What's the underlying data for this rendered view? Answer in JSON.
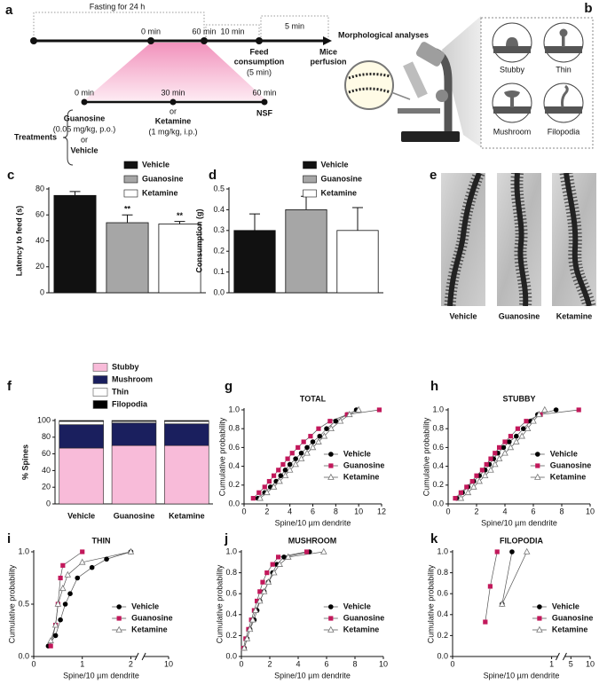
{
  "panel_a": {
    "label": "a",
    "fasting": "Fasting for 24 h",
    "interval_10": "10 min",
    "interval_5": "5 min",
    "start": "0 min",
    "end": "60 min",
    "feed": [
      "Feed",
      "consumption",
      "(5 min)"
    ],
    "perfusion": [
      "Mice",
      "perfusion"
    ],
    "treatment_times": [
      "0 min",
      "30 min",
      "60 min"
    ],
    "guanosine": [
      "Guanosine",
      "(0.05 mg/kg, p.o.)",
      "or",
      "Vehicle"
    ],
    "ketamine": [
      "or",
      "Ketamine",
      "(1 mg/kg, i.p.)"
    ],
    "nsf": "NSF",
    "treatments": "Treatments",
    "morphology": "Morphological analyses"
  },
  "panel_b": {
    "label": "b",
    "spine_types": [
      "Stubby",
      "Thin",
      "Mushroom",
      "Filopodia"
    ]
  },
  "panel_e": {
    "label": "e",
    "groups": [
      "Vehicle",
      "Guanosine",
      "Ketamine"
    ]
  },
  "chart_data": [
    {
      "panel": "c",
      "type": "bar",
      "y_label": "Latency to feed (s)",
      "categories": [
        "Vehicle",
        "Guanosine",
        "Ketamine"
      ],
      "values": [
        75,
        54,
        53
      ],
      "errors": [
        3,
        6,
        2
      ],
      "annotations": [
        null,
        "**",
        "**"
      ],
      "colors": [
        "#111111",
        "#a6a6a6",
        "#ffffff"
      ],
      "ylim": [
        0,
        80
      ],
      "yticks": [
        0,
        20,
        40,
        60,
        80
      ],
      "legend": "top"
    },
    {
      "panel": "d",
      "type": "bar",
      "y_label": "Consumption (g)",
      "categories": [
        "Vehicle",
        "Guanosine",
        "Ketamine"
      ],
      "values": [
        0.3,
        0.4,
        0.3
      ],
      "errors": [
        0.08,
        0.065,
        0.11
      ],
      "colors": [
        "#111111",
        "#a6a6a6",
        "#ffffff"
      ],
      "ylim": [
        0,
        0.5
      ],
      "yticks": [
        {
          "value": 0,
          "label": "0.0"
        },
        {
          "value": 0.1,
          "label": "0.1"
        },
        {
          "value": 0.2,
          "label": "0.2"
        },
        {
          "value": 0.3,
          "label": "0.3"
        },
        {
          "value": 0.4,
          "label": "0.4"
        },
        {
          "value": 0.5,
          "label": "0.5"
        }
      ],
      "legend": "top"
    },
    {
      "panel": "f",
      "type": "stacked_bar",
      "y_label": "% Spines",
      "categories": [
        "Vehicle",
        "Guanosine",
        "Ketamine"
      ],
      "series": [
        {
          "name": "Stubby",
          "color": "#f8bbd9",
          "values": [
            67,
            70,
            70
          ]
        },
        {
          "name": "Mushroom",
          "color": "#1a1f5e",
          "values": [
            28,
            27,
            26
          ]
        },
        {
          "name": "Thin",
          "color": "#ffffff",
          "values": [
            4,
            2,
            3
          ]
        },
        {
          "name": "Filopodia",
          "color": "#000000",
          "values": [
            1,
            1,
            1
          ]
        }
      ],
      "ylim": [
        0,
        100
      ],
      "yticks": [
        0,
        20,
        40,
        60,
        80,
        100
      ],
      "legend": "top"
    },
    {
      "panel": "g",
      "type": "line",
      "title": "TOTAL",
      "x_label": "Spine/10 µm dendrite",
      "y_label": "Cumulative probability",
      "series": [
        {
          "name": "Vehicle",
          "color": "#000000",
          "marker": "circle",
          "x": [
            1.2,
            1.8,
            2.3,
            2.8,
            3.2,
            3.6,
            4.0,
            4.5,
            5.0,
            5.5,
            6.0,
            6.6,
            7.2,
            8.0,
            9.0,
            9.8
          ],
          "values": [
            0.06,
            0.12,
            0.18,
            0.24,
            0.3,
            0.36,
            0.42,
            0.48,
            0.54,
            0.6,
            0.66,
            0.72,
            0.8,
            0.88,
            0.95,
            1.0
          ]
        },
        {
          "name": "Guanosine",
          "color": "#c2185b",
          "marker": "square",
          "x": [
            0.8,
            1.3,
            1.8,
            2.2,
            2.6,
            3.0,
            3.4,
            3.8,
            4.2,
            4.7,
            5.2,
            5.8,
            6.5,
            7.5,
            9.0,
            11.8
          ],
          "values": [
            0.06,
            0.12,
            0.18,
            0.24,
            0.3,
            0.36,
            0.42,
            0.48,
            0.54,
            0.6,
            0.66,
            0.72,
            0.8,
            0.88,
            0.95,
            1.0
          ]
        },
        {
          "name": "Ketamine",
          "color": "#ffffff",
          "marker": "triangle",
          "x": [
            1.4,
            2.0,
            2.6,
            3.1,
            3.6,
            4.0,
            4.5,
            5.0,
            5.5,
            6.0,
            6.5,
            7.0,
            7.6,
            8.4,
            9.2,
            10.0
          ],
          "values": [
            0.06,
            0.12,
            0.18,
            0.24,
            0.3,
            0.36,
            0.42,
            0.48,
            0.54,
            0.6,
            0.66,
            0.72,
            0.8,
            0.88,
            0.95,
            1.0
          ]
        }
      ],
      "xlim": [
        0,
        12
      ],
      "xticks": [
        0,
        2,
        4,
        6,
        8,
        10,
        12
      ],
      "ylim": [
        0,
        1
      ],
      "yticks": [
        {
          "value": 0,
          "label": "0.0"
        },
        {
          "value": 0.2,
          "label": "0.2"
        },
        {
          "value": 0.4,
          "label": "0.4"
        },
        {
          "value": 0.6,
          "label": "0.6"
        },
        {
          "value": 0.8,
          "label": "0.8"
        },
        {
          "value": 1,
          "label": "1.0"
        }
      ],
      "legend": "lower right"
    },
    {
      "panel": "h",
      "type": "line",
      "title": "STUBBY",
      "x_label": "Spine/10 µm dendrite",
      "y_label": "Cumulative probability",
      "series": [
        {
          "name": "Vehicle",
          "color": "#000000",
          "marker": "circle",
          "x": [
            0.6,
            1.0,
            1.4,
            1.8,
            2.2,
            2.6,
            2.9,
            3.2,
            3.5,
            3.9,
            4.3,
            4.8,
            5.3,
            5.8,
            6.3,
            7.6
          ],
          "values": [
            0.06,
            0.12,
            0.18,
            0.24,
            0.3,
            0.36,
            0.42,
            0.48,
            0.54,
            0.6,
            0.66,
            0.72,
            0.8,
            0.88,
            0.95,
            1.0
          ]
        },
        {
          "name": "Guanosine",
          "color": "#c2185b",
          "marker": "square",
          "x": [
            0.5,
            0.9,
            1.3,
            1.7,
            2.0,
            2.4,
            2.7,
            3.0,
            3.3,
            3.6,
            4.0,
            4.4,
            4.9,
            5.5,
            6.5,
            9.2
          ],
          "values": [
            0.06,
            0.12,
            0.18,
            0.24,
            0.3,
            0.36,
            0.42,
            0.48,
            0.54,
            0.6,
            0.66,
            0.72,
            0.8,
            0.88,
            0.95,
            1.0
          ]
        },
        {
          "name": "Ketamine",
          "color": "#ffffff",
          "marker": "triangle",
          "x": [
            0.9,
            1.4,
            1.8,
            2.2,
            2.6,
            3.0,
            3.3,
            3.6,
            4.0,
            4.4,
            4.8,
            5.2,
            5.6,
            6.0,
            6.4,
            6.8
          ],
          "values": [
            0.06,
            0.12,
            0.18,
            0.24,
            0.3,
            0.36,
            0.42,
            0.48,
            0.54,
            0.6,
            0.66,
            0.72,
            0.8,
            0.88,
            0.95,
            1.0
          ]
        }
      ],
      "xlim": [
        0,
        10
      ],
      "xticks": [
        0,
        2,
        4,
        6,
        8,
        10
      ],
      "ylim": [
        0,
        1
      ],
      "yticks": [
        {
          "value": 0,
          "label": "0.0"
        },
        {
          "value": 0.2,
          "label": "0.2"
        },
        {
          "value": 0.4,
          "label": "0.4"
        },
        {
          "value": 0.6,
          "label": "0.6"
        },
        {
          "value": 0.8,
          "label": "0.8"
        },
        {
          "value": 1,
          "label": "1.0"
        }
      ],
      "legend": "lower right"
    },
    {
      "panel": "i",
      "type": "line",
      "title": "THIN",
      "x_label": "Spine/10 µm dendrite",
      "y_label": "Cumulative probability",
      "series": [
        {
          "name": "Vehicle",
          "color": "#000000",
          "marker": "circle",
          "x": [
            0.3,
            0.45,
            0.55,
            0.65,
            0.75,
            0.9,
            1.2,
            1.5,
            2.0
          ],
          "values": [
            0.1,
            0.2,
            0.35,
            0.5,
            0.6,
            0.75,
            0.85,
            0.93,
            1.0
          ]
        },
        {
          "name": "Guanosine",
          "color": "#c2185b",
          "marker": "square",
          "x": [
            0.35,
            0.45,
            0.5,
            0.55,
            0.6,
            1.0
          ],
          "values": [
            0.1,
            0.3,
            0.5,
            0.75,
            0.87,
            1.0
          ]
        },
        {
          "name": "Ketamine",
          "color": "#ffffff",
          "marker": "triangle",
          "x": [
            0.35,
            0.45,
            0.5,
            0.6,
            0.7,
            1.0,
            2.0
          ],
          "values": [
            0.15,
            0.3,
            0.5,
            0.65,
            0.78,
            0.9,
            1.0
          ]
        }
      ],
      "xlim": [
        0,
        10
      ],
      "xticks": [
        0,
        1,
        2,
        10
      ],
      "x_break": [
        2,
        10
      ],
      "ylim": [
        0,
        1
      ],
      "yticks": [
        {
          "value": 0,
          "label": "0.0"
        },
        {
          "value": 0.5,
          "label": "0.5"
        },
        {
          "value": 1,
          "label": "1.0"
        }
      ],
      "legend": "lower right"
    },
    {
      "panel": "j",
      "type": "line",
      "title": "MUSHROOM",
      "x_label": "Spine/10 µm dendrite",
      "y_label": "Cumulative probability",
      "series": [
        {
          "name": "Vehicle",
          "color": "#000000",
          "marker": "circle",
          "x": [
            0.2,
            0.4,
            0.6,
            0.9,
            1.1,
            1.3,
            1.6,
            1.9,
            2.2,
            2.5,
            3.0,
            4.8
          ],
          "values": [
            0.08,
            0.17,
            0.26,
            0.35,
            0.44,
            0.53,
            0.62,
            0.71,
            0.8,
            0.88,
            0.95,
            1.0
          ]
        },
        {
          "name": "Guanosine",
          "color": "#c2185b",
          "marker": "square",
          "x": [
            0.15,
            0.3,
            0.5,
            0.7,
            0.9,
            1.1,
            1.3,
            1.5,
            1.8,
            2.2,
            2.6,
            4.6
          ],
          "values": [
            0.08,
            0.17,
            0.26,
            0.35,
            0.44,
            0.53,
            0.62,
            0.71,
            0.8,
            0.88,
            0.95,
            1.0
          ]
        },
        {
          "name": "Ketamine",
          "color": "#ffffff",
          "marker": "triangle",
          "x": [
            0.2,
            0.4,
            0.6,
            0.8,
            1.0,
            1.3,
            1.6,
            1.9,
            2.3,
            2.7,
            3.3,
            5.8
          ],
          "values": [
            0.08,
            0.17,
            0.26,
            0.35,
            0.44,
            0.53,
            0.62,
            0.71,
            0.8,
            0.88,
            0.95,
            1.0
          ]
        }
      ],
      "xlim": [
        0,
        10
      ],
      "xticks": [
        0,
        2,
        4,
        6,
        8,
        10
      ],
      "ylim": [
        0,
        1
      ],
      "yticks": [
        {
          "value": 0,
          "label": "0.0"
        },
        {
          "value": 0.2,
          "label": "0.2"
        },
        {
          "value": 0.4,
          "label": "0.4"
        },
        {
          "value": 0.6,
          "label": "0.6"
        },
        {
          "value": 0.8,
          "label": "0.8"
        },
        {
          "value": 1,
          "label": "1.0"
        }
      ],
      "legend": "lower right"
    },
    {
      "panel": "k",
      "type": "line",
      "title": "FILOPODIA",
      "x_label": "Spine/10 µm dendrite",
      "y_label": "Cumulative probability",
      "series": [
        {
          "name": "Vehicle",
          "color": "#000000",
          "marker": "circle",
          "x": [
            0.5,
            0.6
          ],
          "values": [
            0.5,
            1.0
          ]
        },
        {
          "name": "Guanosine",
          "color": "#c2185b",
          "marker": "square",
          "x": [
            0.33,
            0.38,
            0.45
          ],
          "values": [
            0.33,
            0.67,
            1.0
          ]
        },
        {
          "name": "Ketamine",
          "color": "#ffffff",
          "marker": "triangle",
          "x": [
            0.5,
            0.75
          ],
          "values": [
            0.5,
            1.0
          ]
        }
      ],
      "xlim": [
        0,
        10
      ],
      "xticks": [
        0,
        1,
        5,
        10
      ],
      "x_break": [
        1,
        5
      ],
      "ylim": [
        0,
        1
      ],
      "yticks": [
        {
          "value": 0,
          "label": "0.0"
        },
        {
          "value": 0.2,
          "label": "0.2"
        },
        {
          "value": 0.4,
          "label": "0.4"
        },
        {
          "value": 0.6,
          "label": "0.6"
        },
        {
          "value": 0.8,
          "label": "0.8"
        },
        {
          "value": 1,
          "label": "1.0"
        }
      ],
      "legend": "lower right"
    }
  ]
}
